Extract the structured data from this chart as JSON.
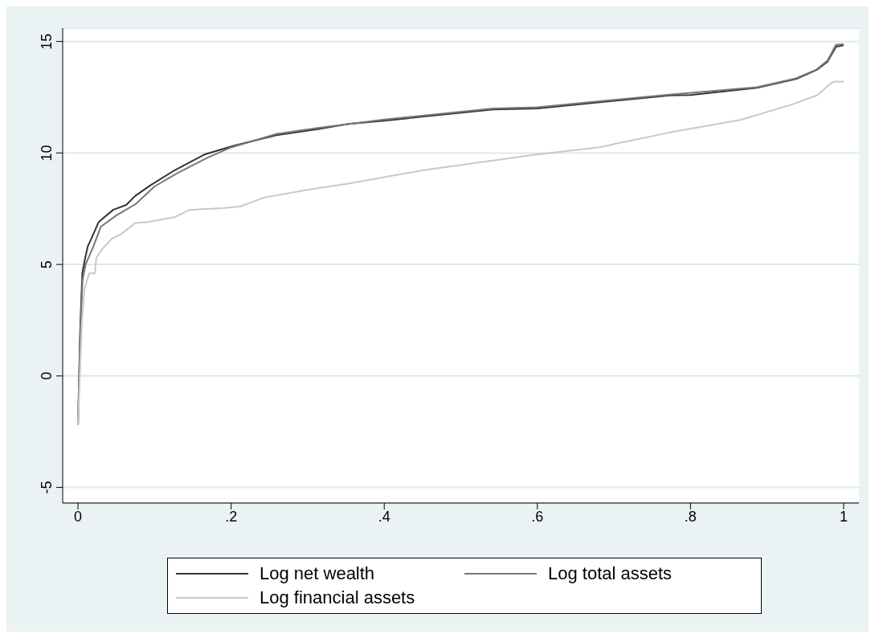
{
  "chart_data": {
    "type": "line",
    "xlim": [
      -0.02,
      1.02
    ],
    "ylim": [
      -5.7,
      15.6
    ],
    "xticks": [
      0,
      {
        "value": 0.2,
        "label": ".2"
      },
      {
        "value": 0.4,
        "label": ".4"
      },
      {
        "value": 0.6,
        "label": ".6"
      },
      {
        "value": 0.8,
        "label": ".8"
      },
      1
    ],
    "yticks": [
      -5,
      0,
      5,
      10,
      15
    ],
    "grid": "y",
    "legend": "bottom",
    "marker": "none",
    "line_style": "solid",
    "series": [
      {
        "name": "Log net wealth",
        "color": "#333333",
        "x": [
          0,
          0.003,
          0.0056,
          0.0095,
          0.0127,
          0.018,
          0.027,
          0.032,
          0.046,
          0.063,
          0.075,
          0.095,
          0.126,
          0.165,
          0.204,
          0.259,
          0.313,
          0.353,
          0.4,
          0.542,
          0.6,
          0.773,
          0.8,
          0.887,
          0.938,
          0.965,
          0.979,
          0.99,
          1.0
        ],
        "values": [
          -2.2,
          2.25,
          4.6,
          5.3,
          5.8,
          6.2,
          6.9,
          7.05,
          7.45,
          7.67,
          8.08,
          8.56,
          9.22,
          9.93,
          10.33,
          10.8,
          11.07,
          11.3,
          11.45,
          11.95,
          12.0,
          12.58,
          12.6,
          12.92,
          13.32,
          13.73,
          14.1,
          14.76,
          14.83
        ]
      },
      {
        "name": "Log total assets",
        "color": "#777777",
        "x": [
          0,
          0.003,
          0.006,
          0.01,
          0.02,
          0.03,
          0.05,
          0.075,
          0.1,
          0.13,
          0.17,
          0.2,
          0.259,
          0.313,
          0.4,
          0.542,
          0.6,
          0.773,
          0.887,
          0.938,
          0.965,
          0.979,
          0.99,
          1.0
        ],
        "values": [
          -2.2,
          2.0,
          4.3,
          5.0,
          5.8,
          6.7,
          7.2,
          7.7,
          8.5,
          9.1,
          9.8,
          10.25,
          10.85,
          11.12,
          11.5,
          12.0,
          12.05,
          12.62,
          12.95,
          13.35,
          13.75,
          14.15,
          14.85,
          14.88
        ]
      },
      {
        "name": "Log financial assets",
        "color": "#c8c8c8",
        "x": [
          0,
          0.005,
          0.0085,
          0.0146,
          0.022,
          0.024,
          0.032,
          0.044,
          0.056,
          0.075,
          0.091,
          0.126,
          0.146,
          0.189,
          0.212,
          0.243,
          0.298,
          0.353,
          0.45,
          0.589,
          0.681,
          0.773,
          0.865,
          0.933,
          0.965,
          0.984,
          0.988,
          1.0
        ],
        "values": [
          -2.2,
          2.4,
          3.9,
          4.6,
          4.6,
          5.3,
          5.7,
          6.15,
          6.35,
          6.86,
          6.9,
          7.12,
          7.45,
          7.53,
          7.6,
          8.0,
          8.34,
          8.63,
          9.22,
          9.89,
          10.26,
          10.92,
          11.48,
          12.18,
          12.58,
          13.14,
          13.2,
          13.2
        ]
      }
    ]
  }
}
